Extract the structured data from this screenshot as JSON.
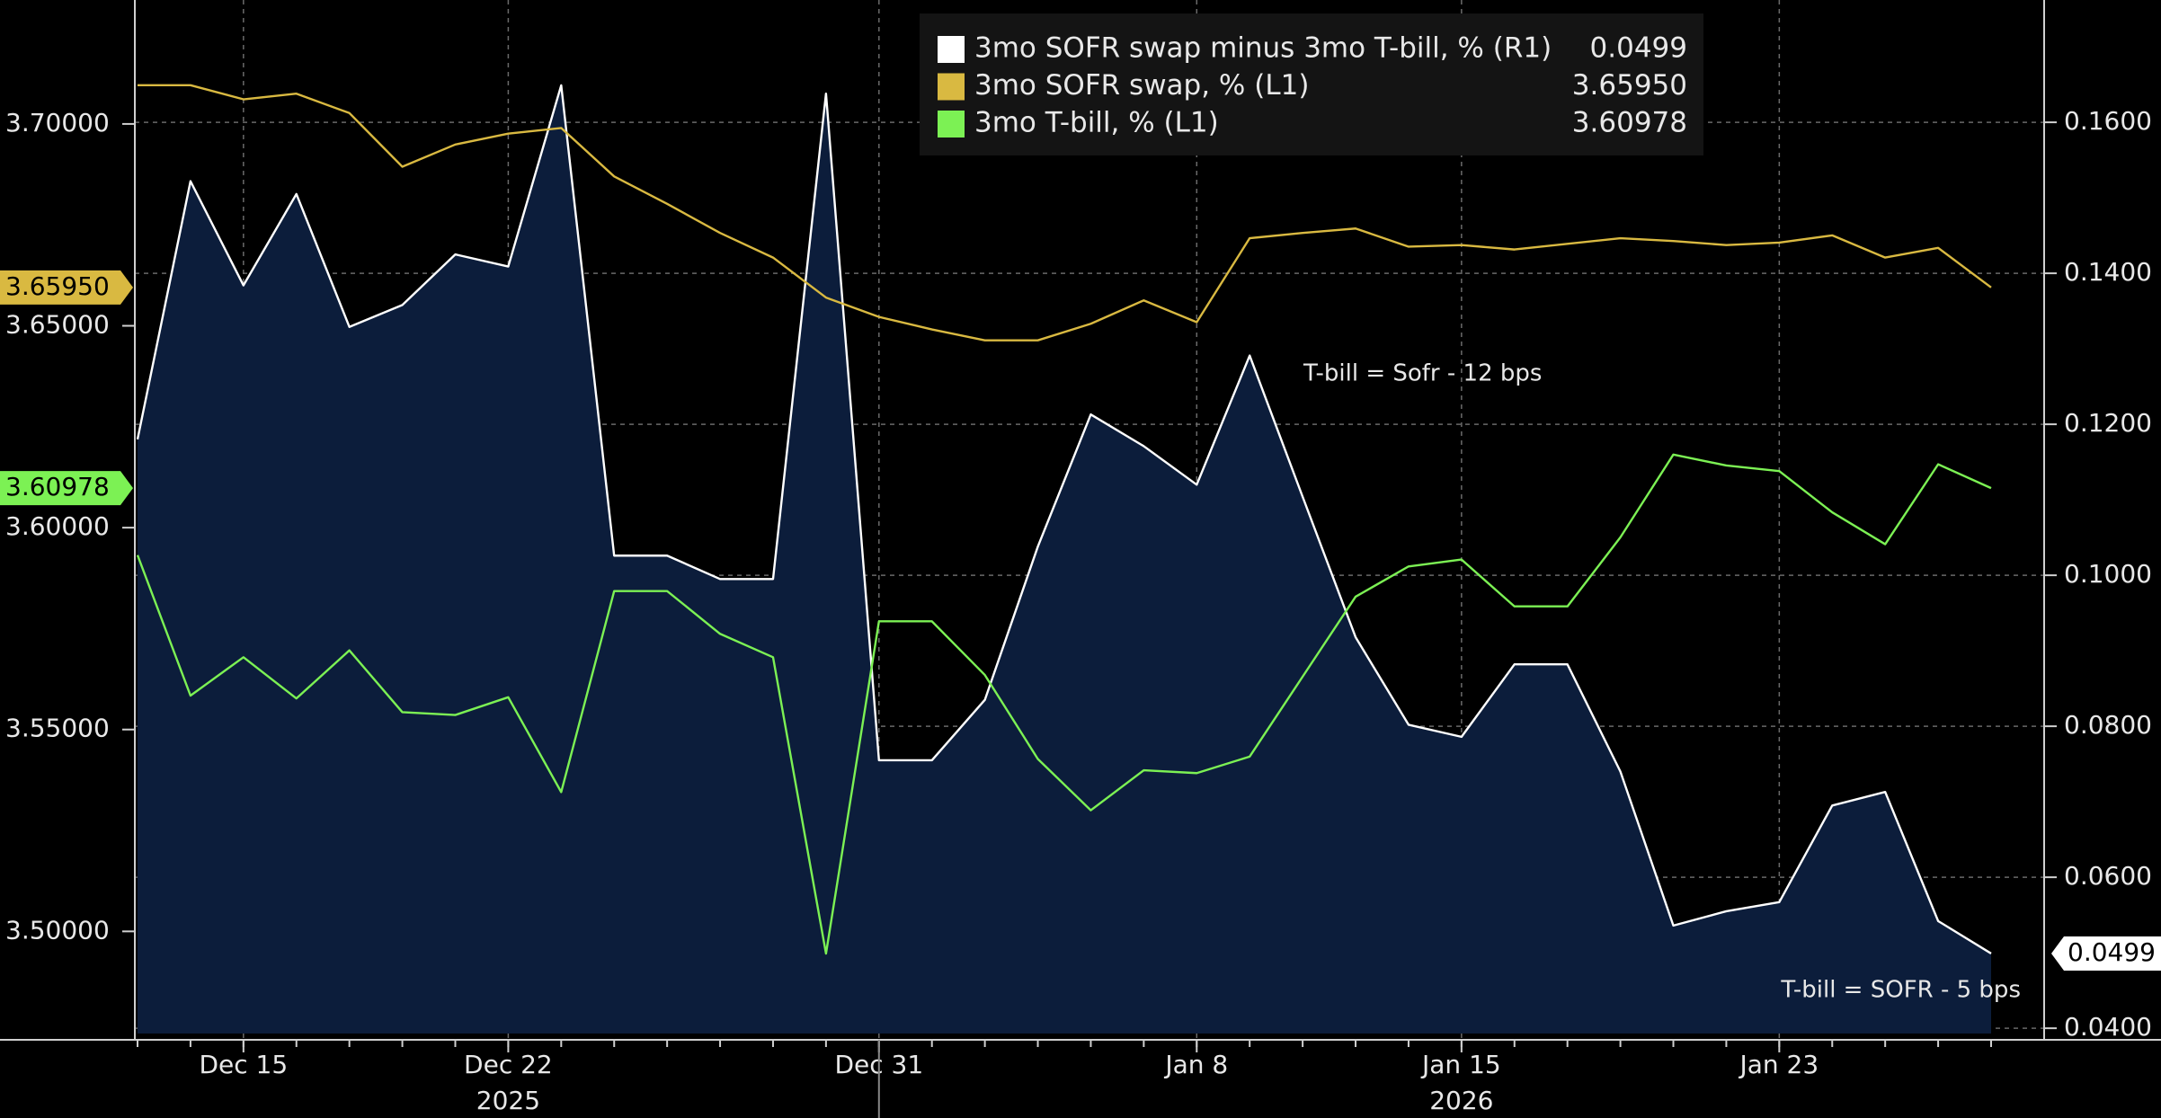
{
  "chart_data": {
    "type": "line",
    "categories": [
      null,
      null,
      "Dec 15",
      null,
      null,
      null,
      null,
      "Dec 22",
      null,
      null,
      null,
      null,
      null,
      null,
      "Dec 31",
      null,
      null,
      null,
      null,
      null,
      "Jan 8",
      null,
      null,
      null,
      null,
      "Jan 15",
      null,
      null,
      null,
      null,
      null,
      "Jan 23",
      null,
      null,
      null,
      null
    ],
    "x_group_labels": [
      "2025",
      "2026"
    ],
    "series": [
      {
        "name": "3mo SOFR swap minus 3mo T-bill, % (R1)",
        "color": "#ffffff",
        "axis": "y2",
        "area": true,
        "area_color": "#0c1d3b",
        "last_label": "0.0499",
        "values": [
          0.118,
          0.1522,
          0.1384,
          0.1505,
          0.1329,
          0.1358,
          0.1425,
          0.1409,
          0.1649,
          0.1026,
          0.1026,
          0.0995,
          0.0995,
          0.1638,
          0.0755,
          0.0755,
          0.0835,
          0.1038,
          0.1213,
          0.1171,
          0.112,
          0.1291,
          0.1104,
          0.0918,
          0.0802,
          0.0786,
          0.0882,
          0.0882,
          0.074,
          0.0536,
          0.0555,
          0.0567,
          0.0695,
          0.0713,
          0.0542,
          0.0499
        ]
      },
      {
        "name": "3mo SOFR swap, % (L1)",
        "color": "#d9b941",
        "axis": "y",
        "last_label": "3.65950",
        "values": [
          3.7096,
          3.7096,
          3.7061,
          3.7075,
          3.7027,
          3.6894,
          3.6949,
          3.6976,
          3.699,
          3.687,
          3.6802,
          3.673,
          3.6669,
          3.657,
          3.6522,
          3.6491,
          3.6464,
          3.6464,
          3.6505,
          3.6563,
          3.6509,
          3.6717,
          3.673,
          3.6741,
          3.6696,
          3.67,
          3.6689,
          3.6703,
          3.6717,
          3.671,
          3.67,
          3.6706,
          3.6724,
          3.6669,
          3.6693,
          3.6595
        ]
      },
      {
        "name": "3mo T-bill, % (L1)",
        "color": "#7cf154",
        "axis": "y",
        "last_label": "3.60978",
        "values": [
          3.5932,
          3.5584,
          3.5679,
          3.5577,
          3.5696,
          3.5543,
          3.5536,
          3.558,
          3.5345,
          3.5843,
          3.5843,
          3.5737,
          3.5679,
          3.4945,
          3.5768,
          3.5768,
          3.5635,
          3.5427,
          3.53,
          3.5399,
          3.5392,
          3.5433,
          3.5631,
          3.5829,
          3.5904,
          3.5921,
          3.5805,
          3.5805,
          3.5976,
          3.6181,
          3.6154,
          3.614,
          3.6038,
          3.5959,
          3.6157,
          3.6098
        ]
      }
    ],
    "ylim": [
      3.4747,
      3.7307
    ],
    "yticks": [
      {
        "value": 3.5,
        "label": "3.50000"
      },
      {
        "value": 3.55,
        "label": "3.55000"
      },
      {
        "value": 3.6,
        "label": "3.60000"
      },
      {
        "value": 3.65,
        "label": "3.65000"
      },
      {
        "value": 3.7,
        "label": "3.70000"
      }
    ],
    "y2lim": [
      0.0393,
      0.1762
    ],
    "y2ticks": [
      {
        "value": 0.04,
        "label": "0.0400"
      },
      {
        "value": 0.06,
        "label": "0.0600"
      },
      {
        "value": 0.08,
        "label": "0.0800"
      },
      {
        "value": 0.1,
        "label": "0.1000"
      },
      {
        "value": 0.12,
        "label": "0.1200"
      },
      {
        "value": 0.14,
        "label": "0.1400"
      },
      {
        "value": 0.16,
        "label": "0.1600"
      }
    ],
    "annotations": [
      "T-bill = Sofr - 12 bps",
      "T-bill = SOFR - 5 bps"
    ],
    "grid": true,
    "legend": "top"
  }
}
